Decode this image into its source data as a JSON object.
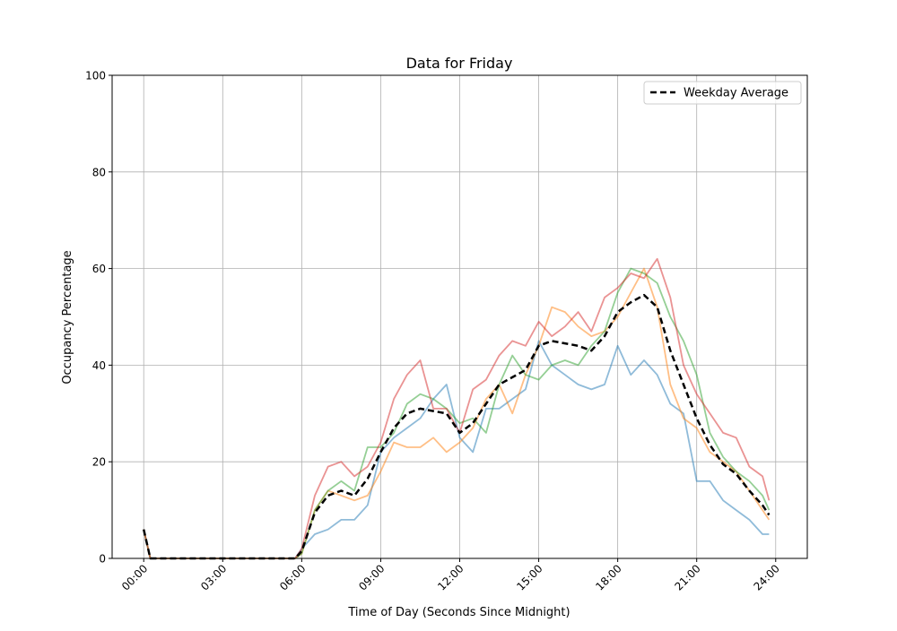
{
  "chart_data": {
    "type": "line",
    "title": "Data for Friday",
    "xlabel": "Time of Day (Seconds Since Midnight)",
    "ylabel": "Occupancy Percentage",
    "ylim": [
      0,
      100
    ],
    "xlim": [
      "-01:12",
      "25:12"
    ],
    "yticks": [
      "0",
      "20",
      "40",
      "60",
      "80",
      "100"
    ],
    "xticks": [
      "00:00",
      "03:00",
      "06:00",
      "09:00",
      "12:00",
      "15:00",
      "18:00",
      "21:00",
      "24:00"
    ],
    "grid": true,
    "legend": {
      "placement": "top-right",
      "entries": [
        "Weekday Average"
      ]
    },
    "x": [
      "00:00",
      "00:15",
      "05:45",
      "06:00",
      "06:30",
      "07:00",
      "07:30",
      "08:00",
      "08:30",
      "09:00",
      "09:30",
      "10:00",
      "10:30",
      "11:00",
      "11:30",
      "12:00",
      "12:30",
      "13:00",
      "13:30",
      "14:00",
      "14:30",
      "15:00",
      "15:30",
      "16:00",
      "16:30",
      "17:00",
      "17:30",
      "18:00",
      "18:30",
      "19:00",
      "19:30",
      "20:00",
      "20:30",
      "21:00",
      "21:30",
      "22:00",
      "22:30",
      "23:00",
      "23:30",
      "23:45"
    ],
    "series": [
      {
        "color": "#1f77b4",
        "alpha": 0.5,
        "style": "solid",
        "values": [
          6,
          0,
          0,
          2,
          5,
          6,
          8,
          8,
          11,
          22,
          25,
          27,
          29,
          33,
          36,
          25,
          22,
          31,
          31,
          33,
          35,
          45,
          40,
          38,
          36,
          35,
          36,
          44,
          38,
          41,
          38,
          32,
          30,
          16,
          16,
          12,
          10,
          8,
          5,
          5
        ]
      },
      {
        "color": "#ff7f0e",
        "alpha": 0.5,
        "style": "solid",
        "values": [
          6,
          0,
          0,
          1,
          10,
          14,
          13,
          12,
          13,
          18,
          24,
          23,
          23,
          25,
          22,
          24,
          27,
          33,
          36,
          30,
          38,
          44,
          52,
          51,
          48,
          46,
          47,
          50,
          55,
          60,
          52,
          36,
          29,
          27,
          22,
          20,
          18,
          14,
          10,
          8
        ]
      },
      {
        "color": "#2ca02c",
        "alpha": 0.5,
        "style": "solid",
        "values": [
          6,
          0,
          0,
          1,
          10,
          14,
          16,
          14,
          23,
          23,
          26,
          32,
          34,
          33,
          31,
          28,
          29,
          26,
          36,
          42,
          38,
          37,
          40,
          41,
          40,
          44,
          47,
          55,
          60,
          59,
          57,
          50,
          45,
          38,
          26,
          21,
          18,
          16,
          13,
          10
        ]
      },
      {
        "color": "#d62728",
        "alpha": 0.5,
        "style": "solid",
        "values": [
          6,
          0,
          0,
          2,
          13,
          19,
          20,
          17,
          19,
          24,
          33,
          38,
          41,
          31,
          31,
          26,
          35,
          37,
          42,
          45,
          44,
          49,
          46,
          48,
          51,
          47,
          54,
          56,
          59,
          58,
          62,
          54,
          40,
          34,
          30,
          26,
          25,
          19,
          17,
          12
        ]
      },
      {
        "name": "Weekday Average",
        "color": "#000000",
        "alpha": 1,
        "style": "dashed",
        "values": [
          6,
          0,
          0,
          1.5,
          9.5,
          13,
          14,
          13,
          16.5,
          22,
          27,
          30,
          31,
          30.5,
          30,
          26,
          28,
          32,
          36,
          37.5,
          39,
          44,
          45,
          44.5,
          44,
          43,
          46,
          51,
          53,
          54.5,
          52,
          43,
          36,
          29,
          23.5,
          19.5,
          17.5,
          14,
          11,
          9
        ]
      }
    ]
  }
}
